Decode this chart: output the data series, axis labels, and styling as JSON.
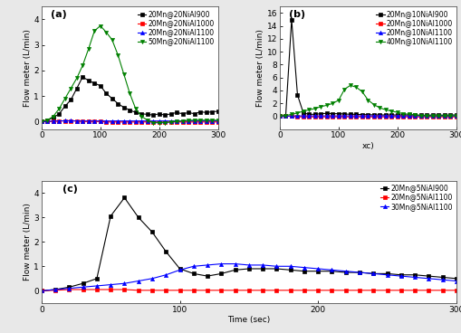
{
  "subplot_a": {
    "label": "(a)",
    "ylabel": "Flow meter (L/min)",
    "ylim": [
      -0.3,
      4.5
    ],
    "yticks": [
      0,
      1,
      2,
      3,
      4
    ],
    "xlim": [
      0,
      300
    ],
    "xticks": [
      0,
      100,
      200,
      300
    ],
    "series": [
      {
        "label": "20Mn@20NiAl900",
        "color": "black",
        "marker": "s",
        "linestyle": "-",
        "x": [
          0,
          10,
          20,
          30,
          40,
          50,
          60,
          70,
          80,
          90,
          100,
          110,
          120,
          130,
          140,
          150,
          160,
          170,
          180,
          190,
          200,
          210,
          220,
          230,
          240,
          250,
          260,
          270,
          280,
          290,
          300
        ],
        "y": [
          0.0,
          0.05,
          0.15,
          0.3,
          0.6,
          0.85,
          1.3,
          1.75,
          1.6,
          1.5,
          1.4,
          1.1,
          0.9,
          0.7,
          0.55,
          0.45,
          0.35,
          0.3,
          0.28,
          0.25,
          0.3,
          0.25,
          0.3,
          0.35,
          0.3,
          0.35,
          0.3,
          0.38,
          0.35,
          0.38,
          0.4
        ]
      },
      {
        "label": "20Mn@20NiAl1000",
        "color": "red",
        "marker": "s",
        "linestyle": "-",
        "x": [
          0,
          10,
          20,
          30,
          40,
          50,
          60,
          70,
          80,
          90,
          100,
          110,
          120,
          130,
          140,
          150,
          160,
          170,
          180,
          190,
          200,
          210,
          220,
          230,
          240,
          250,
          260,
          270,
          280,
          290,
          300
        ],
        "y": [
          0.0,
          0.0,
          0.0,
          0.02,
          0.02,
          0.02,
          0.02,
          0.0,
          0.0,
          0.0,
          0.0,
          -0.02,
          -0.02,
          -0.02,
          -0.02,
          -0.02,
          -0.02,
          -0.02,
          -0.02,
          -0.02,
          -0.02,
          -0.02,
          -0.02,
          -0.02,
          -0.02,
          -0.02,
          -0.02,
          -0.02,
          -0.02,
          -0.02,
          -0.02
        ]
      },
      {
        "label": "20Mn@20NiAl1100",
        "color": "blue",
        "marker": "^",
        "linestyle": "-",
        "x": [
          0,
          10,
          20,
          30,
          40,
          50,
          60,
          70,
          80,
          90,
          100,
          110,
          120,
          130,
          140,
          150,
          160,
          170,
          180,
          190,
          200,
          210,
          220,
          230,
          240,
          250,
          260,
          270,
          280,
          290,
          300
        ],
        "y": [
          0.0,
          0.0,
          0.02,
          0.02,
          0.03,
          0.03,
          0.02,
          0.02,
          0.02,
          0.02,
          0.02,
          0.02,
          0.02,
          0.02,
          0.02,
          0.02,
          0.02,
          0.02,
          0.02,
          0.02,
          0.02,
          0.02,
          0.02,
          0.02,
          0.02,
          0.02,
          0.02,
          0.02,
          0.02,
          0.02,
          0.02
        ]
      },
      {
        "label": "50Mn@20NiAl1100",
        "color": "green",
        "marker": "v",
        "linestyle": "-",
        "x": [
          0,
          10,
          20,
          30,
          40,
          50,
          60,
          70,
          80,
          90,
          100,
          110,
          120,
          130,
          140,
          150,
          160,
          170,
          180,
          190,
          200,
          210,
          220,
          230,
          240,
          250,
          260,
          270,
          280,
          290,
          300
        ],
        "y": [
          0.0,
          0.05,
          0.2,
          0.5,
          0.9,
          1.3,
          1.7,
          2.2,
          2.85,
          3.55,
          3.75,
          3.5,
          3.2,
          2.6,
          1.85,
          1.1,
          0.5,
          0.2,
          0.05,
          -0.05,
          -0.05,
          -0.05,
          -0.02,
          0.0,
          0.02,
          0.05,
          0.05,
          0.05,
          0.05,
          0.05,
          0.05
        ]
      }
    ]
  },
  "subplot_b": {
    "label": "(b)",
    "ylabel": "Flow meter (L/min)",
    "ylim": [
      -2,
      17
    ],
    "yticks": [
      0,
      2,
      4,
      6,
      8,
      10,
      12,
      14,
      16
    ],
    "xlim": [
      0,
      300
    ],
    "xticks": [
      0,
      100,
      200,
      300
    ],
    "xlabel": "xc)",
    "series": [
      {
        "label": "20Mn@10NiAl900",
        "color": "black",
        "marker": "s",
        "linestyle": "-",
        "x": [
          0,
          10,
          20,
          30,
          40,
          50,
          60,
          70,
          80,
          90,
          100,
          110,
          120,
          130,
          140,
          150,
          160,
          170,
          180,
          190,
          200,
          210,
          220,
          230,
          240,
          250,
          260,
          270,
          280,
          290,
          300
        ],
        "y": [
          0.0,
          0.1,
          15.0,
          3.3,
          0.5,
          0.3,
          0.3,
          0.4,
          0.45,
          0.4,
          0.4,
          0.35,
          0.3,
          0.3,
          0.25,
          0.25,
          0.2,
          0.2,
          0.2,
          0.2,
          0.2,
          0.2,
          0.2,
          0.2,
          0.15,
          0.15,
          0.2,
          0.2,
          0.15,
          0.2,
          0.2
        ]
      },
      {
        "label": "20Mn@10NiAl1000",
        "color": "red",
        "marker": "s",
        "linestyle": "-",
        "x": [
          0,
          10,
          20,
          30,
          40,
          50,
          60,
          70,
          80,
          90,
          100,
          110,
          120,
          130,
          140,
          150,
          160,
          170,
          180,
          190,
          200,
          210,
          220,
          230,
          240,
          250,
          260,
          270,
          280,
          290,
          300
        ],
        "y": [
          0.0,
          0.0,
          0.0,
          -0.1,
          -0.1,
          -0.1,
          -0.1,
          -0.1,
          -0.1,
          -0.1,
          -0.1,
          -0.1,
          -0.1,
          -0.1,
          -0.1,
          -0.1,
          -0.1,
          -0.1,
          -0.1,
          -0.1,
          -0.1,
          -0.1,
          -0.1,
          -0.1,
          -0.1,
          -0.1,
          -0.1,
          -0.1,
          -0.1,
          -0.1,
          -0.1
        ]
      },
      {
        "label": "20Mn@10NiAl1100",
        "color": "blue",
        "marker": "^",
        "linestyle": "-",
        "x": [
          0,
          10,
          20,
          30,
          40,
          50,
          60,
          70,
          80,
          90,
          100,
          110,
          120,
          130,
          140,
          150,
          160,
          170,
          180,
          190,
          200,
          210,
          220,
          230,
          240,
          250,
          260,
          270,
          280,
          290,
          300
        ],
        "y": [
          0.0,
          0.0,
          0.05,
          0.05,
          0.05,
          0.05,
          0.05,
          0.05,
          0.05,
          0.05,
          0.05,
          0.05,
          0.05,
          0.05,
          0.05,
          0.05,
          0.05,
          0.05,
          0.05,
          0.05,
          0.05,
          0.05,
          0.05,
          0.05,
          0.05,
          0.05,
          0.05,
          0.05,
          0.05,
          0.05,
          0.05
        ]
      },
      {
        "label": "40Mn@10NiAl1100",
        "color": "green",
        "marker": "v",
        "linestyle": "-",
        "x": [
          0,
          10,
          20,
          30,
          40,
          50,
          60,
          70,
          80,
          90,
          100,
          110,
          120,
          130,
          140,
          150,
          160,
          170,
          180,
          190,
          200,
          210,
          220,
          230,
          240,
          250,
          260,
          270,
          280,
          290,
          300
        ],
        "y": [
          0.0,
          0.1,
          0.3,
          0.5,
          0.8,
          1.0,
          1.2,
          1.5,
          1.7,
          2.0,
          2.5,
          4.2,
          4.8,
          4.5,
          3.8,
          2.5,
          1.8,
          1.3,
          1.0,
          0.8,
          0.6,
          0.4,
          0.3,
          0.2,
          0.1,
          0.05,
          0.05,
          0.05,
          0.05,
          0.05,
          0.05
        ]
      }
    ]
  },
  "subplot_c": {
    "label": "(c)",
    "ylabel": "Flow meter (L/min)",
    "xlabel": "Time (sec)",
    "ylim": [
      -0.5,
      4.5
    ],
    "yticks": [
      0,
      1,
      2,
      3,
      4
    ],
    "xlim": [
      0,
      300
    ],
    "xticks": [
      0,
      100,
      200,
      300
    ],
    "series": [
      {
        "label": "20Mn@5NiAl900",
        "color": "black",
        "marker": "s",
        "linestyle": "-",
        "x": [
          0,
          10,
          20,
          30,
          40,
          50,
          60,
          70,
          80,
          90,
          100,
          110,
          120,
          130,
          140,
          150,
          160,
          170,
          180,
          190,
          200,
          210,
          220,
          230,
          240,
          250,
          260,
          270,
          280,
          290,
          300
        ],
        "y": [
          0.0,
          0.05,
          0.15,
          0.3,
          0.5,
          3.05,
          3.8,
          3.0,
          2.4,
          1.6,
          0.9,
          0.7,
          0.6,
          0.7,
          0.85,
          0.9,
          0.9,
          0.9,
          0.85,
          0.8,
          0.8,
          0.8,
          0.75,
          0.75,
          0.7,
          0.7,
          0.65,
          0.65,
          0.6,
          0.55,
          0.5
        ]
      },
      {
        "label": "20Mn@5NiAl1100",
        "color": "red",
        "marker": "s",
        "linestyle": "-",
        "x": [
          0,
          10,
          20,
          30,
          40,
          50,
          60,
          70,
          80,
          90,
          100,
          110,
          120,
          130,
          140,
          150,
          160,
          170,
          180,
          190,
          200,
          210,
          220,
          230,
          240,
          250,
          260,
          270,
          280,
          290,
          300
        ],
        "y": [
          0.0,
          0.02,
          0.05,
          0.05,
          0.05,
          0.05,
          0.05,
          0.02,
          0.02,
          0.02,
          0.02,
          0.02,
          0.02,
          0.02,
          0.02,
          0.02,
          0.02,
          0.02,
          0.02,
          0.02,
          0.02,
          0.02,
          0.02,
          0.02,
          0.02,
          0.02,
          0.02,
          0.02,
          0.02,
          0.02,
          0.02
        ]
      },
      {
        "label": "30Mn@5NiAl1100",
        "color": "blue",
        "marker": "^",
        "linestyle": "-",
        "x": [
          0,
          10,
          20,
          30,
          40,
          50,
          60,
          70,
          80,
          90,
          100,
          110,
          120,
          130,
          140,
          150,
          160,
          170,
          180,
          190,
          200,
          210,
          220,
          230,
          240,
          250,
          260,
          270,
          280,
          290,
          300
        ],
        "y": [
          0.0,
          0.05,
          0.1,
          0.15,
          0.2,
          0.25,
          0.3,
          0.4,
          0.5,
          0.65,
          0.85,
          1.0,
          1.05,
          1.1,
          1.1,
          1.05,
          1.05,
          1.0,
          1.0,
          0.95,
          0.9,
          0.85,
          0.8,
          0.75,
          0.7,
          0.65,
          0.6,
          0.55,
          0.5,
          0.45,
          0.4
        ]
      }
    ]
  },
  "figure_bg": "#e8e8e8",
  "axes_bg": "white",
  "legend_fontsize": 5.5,
  "tick_labelsize": 6.5,
  "label_fontsize": 6.5,
  "marker_size": 3,
  "linewidth": 0.8
}
